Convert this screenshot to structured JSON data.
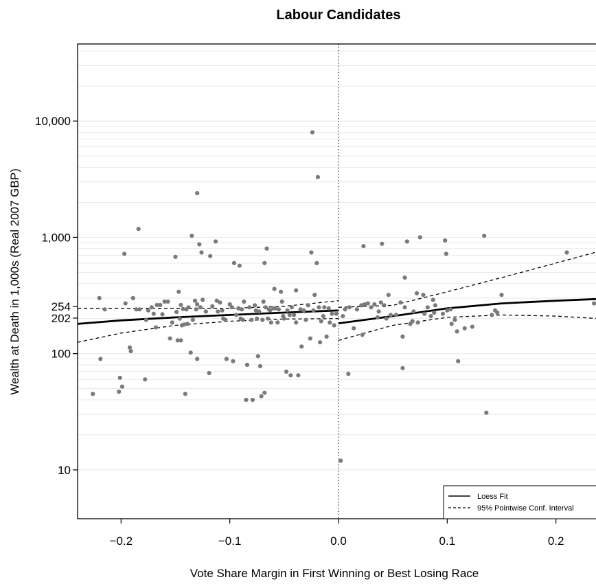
{
  "chart_data": {
    "type": "scatter",
    "title": "Labour Candidates",
    "xlabel": "Vote Share Margin in First Winning or Best Losing Race",
    "ylabel": "Wealth at Death in 1,000s (Real 2007 GBP)",
    "x_scale": "linear",
    "y_scale": "log",
    "xlim": [
      -0.24,
      0.24
    ],
    "ylim": [
      3.8,
      46000
    ],
    "x_ticks": [
      {
        "value": -0.2,
        "label": "−0.2"
      },
      {
        "value": -0.1,
        "label": "−0.1"
      },
      {
        "value": 0.0,
        "label": "0.0"
      },
      {
        "value": 0.1,
        "label": "0.1"
      },
      {
        "value": 0.2,
        "label": "0.2"
      }
    ],
    "y_ticks": [
      {
        "value": 10,
        "label": "10"
      },
      {
        "value": 100,
        "label": "100"
      },
      {
        "value": 202,
        "label": "202"
      },
      {
        "value": 254,
        "label": "254"
      },
      {
        "value": 1000,
        "label": "1,000"
      },
      {
        "value": 10000,
        "label": "10,000"
      }
    ],
    "gridlines": "light horizontal lines at 10-40, 50-90, 100-900 and 1,000-40,000 (log minor grid)",
    "threshold_line": {
      "x": 0.0,
      "style": "dotted"
    },
    "legend": {
      "position": "bottom-right",
      "entries": [
        {
          "label": "Loess Fit",
          "style": "solid"
        },
        {
          "label": "95% Pointwise Conf. Interval",
          "style": "dashed"
        }
      ]
    },
    "points": [
      [
        -0.226,
        45
      ],
      [
        -0.22,
        300
      ],
      [
        -0.219,
        90
      ],
      [
        -0.215,
        240
      ],
      [
        -0.202,
        47
      ],
      [
        -0.201,
        62
      ],
      [
        -0.199,
        52
      ],
      [
        -0.197,
        720
      ],
      [
        -0.196,
        270
      ],
      [
        -0.192,
        113
      ],
      [
        -0.191,
        105
      ],
      [
        -0.189,
        300
      ],
      [
        -0.186,
        240
      ],
      [
        -0.184,
        1180
      ],
      [
        -0.183,
        240
      ],
      [
        -0.178,
        60
      ],
      [
        -0.177,
        195
      ],
      [
        -0.175,
        235
      ],
      [
        -0.172,
        250
      ],
      [
        -0.17,
        220
      ],
      [
        -0.168,
        168
      ],
      [
        -0.167,
        262
      ],
      [
        -0.164,
        262
      ],
      [
        -0.162,
        218
      ],
      [
        -0.16,
        280
      ],
      [
        -0.157,
        280
      ],
      [
        -0.155,
        135
      ],
      [
        -0.153,
        185
      ],
      [
        -0.15,
        680
      ],
      [
        -0.149,
        228
      ],
      [
        -0.148,
        130
      ],
      [
        -0.147,
        340
      ],
      [
        -0.146,
        200
      ],
      [
        -0.145,
        262
      ],
      [
        -0.145,
        130
      ],
      [
        -0.144,
        175
      ],
      [
        -0.143,
        242
      ],
      [
        -0.142,
        178
      ],
      [
        -0.141,
        45
      ],
      [
        -0.14,
        240
      ],
      [
        -0.139,
        180
      ],
      [
        -0.138,
        250
      ],
      [
        -0.136,
        102
      ],
      [
        -0.135,
        1030
      ],
      [
        -0.134,
        195
      ],
      [
        -0.132,
        285
      ],
      [
        -0.131,
        240
      ],
      [
        -0.13,
        2400
      ],
      [
        -0.13,
        90
      ],
      [
        -0.13,
        265
      ],
      [
        -0.128,
        870
      ],
      [
        -0.127,
        250
      ],
      [
        -0.126,
        740
      ],
      [
        -0.125,
        290
      ],
      [
        -0.122,
        230
      ],
      [
        -0.119,
        68
      ],
      [
        -0.118,
        690
      ],
      [
        -0.116,
        255
      ],
      [
        -0.113,
        920
      ],
      [
        -0.112,
        285
      ],
      [
        -0.111,
        230
      ],
      [
        -0.109,
        275
      ],
      [
        -0.107,
        235
      ],
      [
        -0.106,
        200
      ],
      [
        -0.104,
        195
      ],
      [
        -0.103,
        90
      ],
      [
        -0.1,
        265
      ],
      [
        -0.098,
        250
      ],
      [
        -0.097,
        86
      ],
      [
        -0.096,
        600
      ],
      [
        -0.094,
        215
      ],
      [
        -0.092,
        245
      ],
      [
        -0.091,
        570
      ],
      [
        -0.09,
        200
      ],
      [
        -0.089,
        240
      ],
      [
        -0.088,
        195
      ],
      [
        -0.087,
        280
      ],
      [
        -0.085,
        40
      ],
      [
        -0.084,
        80
      ],
      [
        -0.082,
        250
      ],
      [
        -0.08,
        195
      ],
      [
        -0.079,
        40
      ],
      [
        -0.077,
        260
      ],
      [
        -0.076,
        235
      ],
      [
        -0.075,
        200
      ],
      [
        -0.074,
        95
      ],
      [
        -0.073,
        230
      ],
      [
        -0.072,
        78
      ],
      [
        -0.071,
        43
      ],
      [
        -0.07,
        195
      ],
      [
        -0.069,
        280
      ],
      [
        -0.068,
        46
      ],
      [
        -0.068,
        600
      ],
      [
        -0.067,
        250
      ],
      [
        -0.066,
        800
      ],
      [
        -0.065,
        200
      ],
      [
        -0.064,
        240
      ],
      [
        -0.063,
        235
      ],
      [
        -0.062,
        185
      ],
      [
        -0.06,
        245
      ],
      [
        -0.059,
        360
      ],
      [
        -0.058,
        245
      ],
      [
        -0.056,
        185
      ],
      [
        -0.055,
        240
      ],
      [
        -0.053,
        340
      ],
      [
        -0.052,
        280
      ],
      [
        -0.051,
        210
      ],
      [
        -0.05,
        200
      ],
      [
        -0.048,
        70
      ],
      [
        -0.047,
        235
      ],
      [
        -0.045,
        215
      ],
      [
        -0.044,
        65
      ],
      [
        -0.043,
        250
      ],
      [
        -0.041,
        215
      ],
      [
        -0.039,
        350
      ],
      [
        -0.039,
        185
      ],
      [
        -0.037,
        65
      ],
      [
        -0.035,
        240
      ],
      [
        -0.034,
        115
      ],
      [
        -0.032,
        235
      ],
      [
        -0.03,
        195
      ],
      [
        -0.028,
        260
      ],
      [
        -0.026,
        135
      ],
      [
        -0.025,
        740
      ],
      [
        -0.024,
        8000
      ],
      [
        -0.023,
        235
      ],
      [
        -0.022,
        320
      ],
      [
        -0.02,
        600
      ],
      [
        -0.019,
        3300
      ],
      [
        -0.018,
        250
      ],
      [
        -0.017,
        125
      ],
      [
        -0.016,
        190
      ],
      [
        -0.014,
        210
      ],
      [
        -0.013,
        250
      ],
      [
        -0.011,
        140
      ],
      [
        -0.009,
        245
      ],
      [
        -0.008,
        185
      ],
      [
        -0.006,
        220
      ],
      [
        -0.004,
        175
      ],
      [
        -0.002,
        220
      ],
      [
        0.002,
        12
      ],
      [
        0.004,
        210
      ],
      [
        0.006,
        240
      ],
      [
        0.009,
        67
      ],
      [
        0.01,
        250
      ],
      [
        0.014,
        165
      ],
      [
        0.017,
        240
      ],
      [
        0.021,
        260
      ],
      [
        0.022,
        145
      ],
      [
        0.023,
        840
      ],
      [
        0.024,
        265
      ],
      [
        0.027,
        270
      ],
      [
        0.03,
        250
      ],
      [
        0.033,
        265
      ],
      [
        0.036,
        205
      ],
      [
        0.037,
        230
      ],
      [
        0.039,
        275
      ],
      [
        0.04,
        880
      ],
      [
        0.042,
        260
      ],
      [
        0.044,
        200
      ],
      [
        0.046,
        320
      ],
      [
        0.048,
        215
      ],
      [
        0.053,
        215
      ],
      [
        0.057,
        275
      ],
      [
        0.059,
        75
      ],
      [
        0.059,
        140
      ],
      [
        0.061,
        450
      ],
      [
        0.061,
        250
      ],
      [
        0.063,
        920
      ],
      [
        0.066,
        180
      ],
      [
        0.068,
        190
      ],
      [
        0.069,
        230
      ],
      [
        0.072,
        330
      ],
      [
        0.073,
        185
      ],
      [
        0.075,
        1000
      ],
      [
        0.078,
        320
      ],
      [
        0.079,
        220
      ],
      [
        0.082,
        250
      ],
      [
        0.085,
        210
      ],
      [
        0.087,
        290
      ],
      [
        0.088,
        225
      ],
      [
        0.089,
        260
      ],
      [
        0.096,
        220
      ],
      [
        0.098,
        940
      ],
      [
        0.099,
        720
      ],
      [
        0.1,
        235
      ],
      [
        0.103,
        240
      ],
      [
        0.104,
        180
      ],
      [
        0.107,
        195
      ],
      [
        0.109,
        155
      ],
      [
        0.11,
        86
      ],
      [
        0.116,
        165
      ],
      [
        0.123,
        170
      ],
      [
        0.134,
        1030
      ],
      [
        0.136,
        31
      ],
      [
        0.141,
        215
      ],
      [
        0.144,
        235
      ],
      [
        0.146,
        225
      ],
      [
        0.15,
        320
      ],
      [
        0.21,
        740
      ],
      [
        0.235,
        270
      ]
    ],
    "series": [
      {
        "name": "Loess Fit",
        "style": "solid",
        "segments": [
          [
            [
              -0.24,
              180
            ],
            [
              -0.2,
              193
            ],
            [
              -0.15,
              205
            ],
            [
              -0.1,
              215
            ],
            [
              -0.05,
              225
            ],
            [
              0.0,
              235
            ]
          ],
          [
            [
              0.0,
              182
            ],
            [
              0.05,
              210
            ],
            [
              0.1,
              245
            ],
            [
              0.15,
              270
            ],
            [
              0.2,
              285
            ],
            [
              0.24,
              295
            ]
          ]
        ]
      },
      {
        "name": "95% Pointwise Conf. Interval",
        "style": "dashed",
        "segments": [
          [
            [
              -0.24,
              125
            ],
            [
              -0.2,
              150
            ],
            [
              -0.15,
              175
            ],
            [
              -0.1,
              190
            ],
            [
              -0.05,
              198
            ],
            [
              0.0,
              200
            ]
          ],
          [
            [
              -0.24,
              245
            ],
            [
              -0.2,
              245
            ],
            [
              -0.15,
              245
            ],
            [
              -0.1,
              245
            ],
            [
              -0.05,
              255
            ],
            [
              0.0,
              285
            ]
          ],
          [
            [
              0.0,
              130
            ],
            [
              0.05,
              175
            ],
            [
              0.1,
              205
            ],
            [
              0.15,
              215
            ],
            [
              0.2,
              210
            ],
            [
              0.24,
              200
            ]
          ],
          [
            [
              0.0,
              250
            ],
            [
              0.05,
              260
            ],
            [
              0.1,
              340
            ],
            [
              0.15,
              450
            ],
            [
              0.2,
              600
            ],
            [
              0.24,
              760
            ]
          ]
        ]
      }
    ]
  }
}
